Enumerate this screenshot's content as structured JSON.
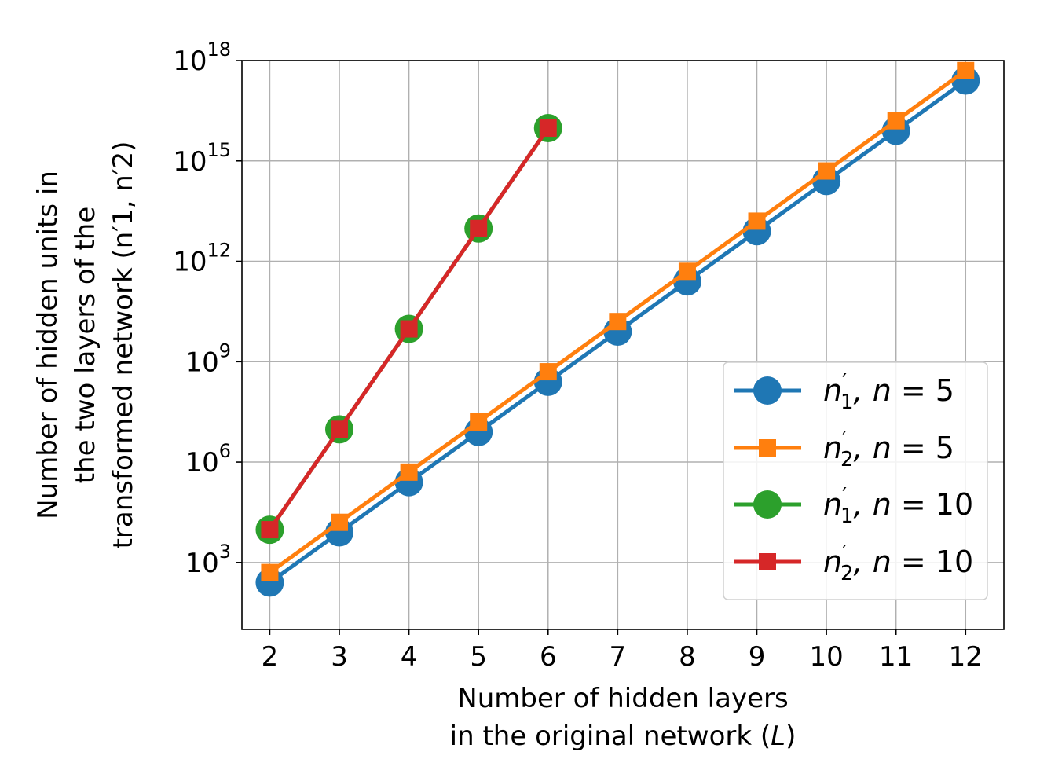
{
  "chart_data": {
    "type": "line",
    "y_scale": "log",
    "grid": true,
    "xlabel": [
      "Number of hidden layers",
      "in the original network (L)"
    ],
    "ylabel": [
      "Number of hidden units in",
      "the two layers of the",
      "transformed network (n′1, n′2)"
    ],
    "x_ticks": [
      2,
      3,
      4,
      5,
      6,
      7,
      8,
      9,
      10,
      11,
      12
    ],
    "y_ticks": [
      {
        "base": "10",
        "exp": "3",
        "value": 3
      },
      {
        "base": "10",
        "exp": "6",
        "value": 6
      },
      {
        "base": "10",
        "exp": "9",
        "value": 9
      },
      {
        "base": "10",
        "exp": "12",
        "value": 12
      },
      {
        "base": "10",
        "exp": "15",
        "value": 15
      },
      {
        "base": "10",
        "exp": "18",
        "value": 18
      }
    ],
    "x_range": [
      1.6,
      12.55
    ],
    "y_log10_range": [
      1.0,
      18.0
    ],
    "legend_position": "lower-right",
    "series": [
      {
        "name": "n′1, n = 5",
        "color": "#1f77b4",
        "marker": "circle",
        "x": [
          2,
          3,
          4,
          5,
          6,
          7,
          8,
          9,
          10,
          11,
          12
        ],
        "log10_y": [
          2.4,
          3.9,
          5.4,
          6.9,
          8.4,
          9.9,
          11.4,
          12.9,
          14.4,
          15.9,
          17.4
        ]
      },
      {
        "name": "n′2, n = 5",
        "color": "#ff7f0e",
        "marker": "square",
        "x": [
          2,
          3,
          4,
          5,
          6,
          7,
          8,
          9,
          10,
          11,
          12
        ],
        "log10_y": [
          2.7,
          4.2,
          5.7,
          7.2,
          8.7,
          10.2,
          11.7,
          13.2,
          14.7,
          16.2,
          17.7
        ]
      },
      {
        "name": "n′1, n = 10",
        "color": "#2ca02c",
        "marker": "circle",
        "x": [
          2,
          3,
          4,
          5,
          6
        ],
        "log10_y": [
          3.98,
          6.98,
          9.98,
          12.98,
          15.98
        ]
      },
      {
        "name": "n′2, n = 10",
        "color": "#d62728",
        "marker": "square",
        "x": [
          2,
          3,
          4,
          5,
          6
        ],
        "log10_y": [
          3.98,
          6.98,
          9.98,
          12.98,
          15.98
        ]
      }
    ],
    "legend_entries": [
      {
        "sym": "n",
        "sub": "1",
        "rest": ", n = 5"
      },
      {
        "sym": "n",
        "sub": "2",
        "rest": ", n = 5"
      },
      {
        "sym": "n",
        "sub": "1",
        "rest": ", n = 10"
      },
      {
        "sym": "n",
        "sub": "2",
        "rest": ", n = 10"
      }
    ]
  }
}
